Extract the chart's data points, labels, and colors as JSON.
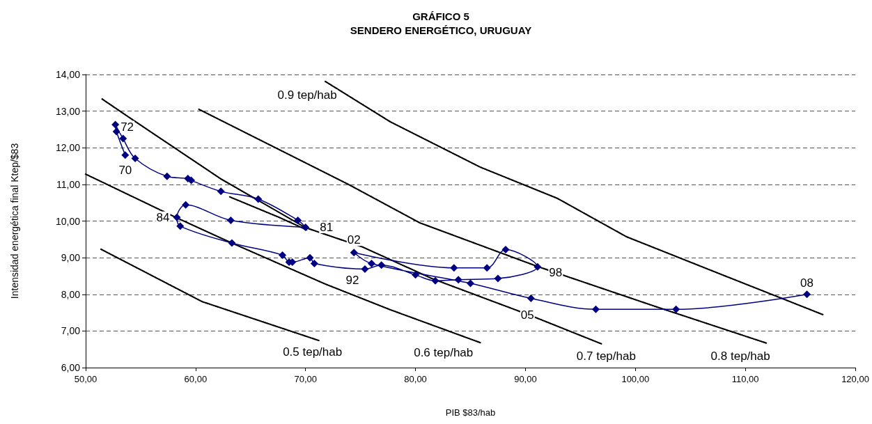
{
  "chart_data": {
    "type": "line",
    "title": "GRÁFICO 5\nSENDERO ENERGÉTICO, URUGUAY",
    "xlabel": "PIB $83/hab",
    "ylabel": "Intensidad energética final Ktep/$83",
    "xlim": [
      50,
      120
    ],
    "xticks": [
      {
        "value": 50,
        "label": "50,00"
      },
      {
        "value": 60,
        "label": "60,00"
      },
      {
        "value": 70,
        "label": "70,00"
      },
      {
        "value": 80,
        "label": "80,00"
      },
      {
        "value": 90,
        "label": "90,00"
      },
      {
        "value": 100,
        "label": "100,00"
      },
      {
        "value": 110,
        "label": "110,00"
      },
      {
        "value": 120,
        "label": "120,00"
      }
    ],
    "ylim": [
      6,
      14
    ],
    "yticks": [
      {
        "value": 6,
        "label": "6,00"
      },
      {
        "value": 7,
        "label": "7,00"
      },
      {
        "value": 8,
        "label": "8,00"
      },
      {
        "value": 9,
        "label": "9,00"
      },
      {
        "value": 10,
        "label": "10,00"
      },
      {
        "value": 11,
        "label": "11,00"
      },
      {
        "value": 12,
        "label": "12,00"
      },
      {
        "value": 13,
        "label": "13,00"
      },
      {
        "value": 14,
        "label": "14,00"
      }
    ],
    "grid": "y",
    "series": [
      {
        "color": "#000080",
        "marker": "diamond",
        "line_style": "solid",
        "x": [
          53.6,
          52.8,
          52.7,
          53.4,
          54.5,
          57.4,
          59.3,
          59.6,
          62.3,
          65.7,
          69.3,
          70.0,
          63.2,
          59.1,
          58.3,
          58.6,
          63.3,
          67.9,
          68.5,
          68.8,
          70.4,
          70.8,
          75.4,
          76.9,
          80.0,
          81.8,
          83.9,
          87.5,
          91.1,
          88.2,
          86.5,
          83.5,
          74.4,
          76.0,
          85.0,
          90.5,
          96.4,
          103.7,
          115.6
        ],
        "values": [
          11.8,
          12.44,
          12.63,
          12.25,
          11.71,
          11.22,
          11.16,
          11.11,
          10.81,
          10.6,
          10.02,
          9.83,
          10.02,
          10.44,
          10.1,
          9.86,
          9.4,
          9.07,
          8.88,
          8.88,
          9.0,
          8.84,
          8.69,
          8.8,
          8.53,
          8.37,
          8.4,
          8.43,
          8.75,
          9.22,
          8.72,
          8.72,
          9.14,
          8.84,
          8.3,
          7.89,
          7.59,
          7.59,
          8.0
        ]
      },
      {
        "color": "#000000",
        "marker": "none",
        "line_style": "dotted",
        "x": [
          51.4,
          60.6,
          71.2
        ],
        "values": [
          9.23,
          7.8,
          6.74
        ]
      },
      {
        "color": "#000000",
        "marker": "none",
        "line_style": "dotted",
        "x": [
          50.0,
          58.2,
          63.3,
          71.8,
          77.7,
          85.9
        ],
        "values": [
          11.28,
          10.1,
          9.4,
          8.28,
          7.58,
          6.68
        ]
      },
      {
        "color": "#000000",
        "marker": "none",
        "line_style": "dotted",
        "x": [
          51.5,
          54.1,
          62.3,
          70.0,
          75.2,
          81.5,
          90.4,
          96.9
        ],
        "values": [
          13.33,
          12.8,
          11.15,
          9.82,
          9.29,
          8.43,
          7.43,
          6.65
        ]
      },
      {
        "color": "#000000",
        "marker": "none",
        "line_style": "dotted",
        "x": [
          63.1,
          67.6,
          70.1
        ],
        "values": [
          10.66,
          10.1,
          9.76
        ]
      },
      {
        "color": "#000000",
        "marker": "none",
        "line_style": "dotted",
        "x": [
          60.3,
          67.6,
          73.9,
          80.4,
          91.1,
          101.8,
          111.9
        ],
        "values": [
          13.05,
          11.95,
          11.0,
          9.95,
          8.76,
          7.67,
          6.67
        ]
      },
      {
        "color": "#000000",
        "marker": "none",
        "line_style": "dotted",
        "x": [
          71.8,
          77.7,
          85.9,
          92.9,
          99.2,
          107.5,
          117.1
        ],
        "values": [
          13.81,
          12.71,
          11.47,
          10.62,
          9.57,
          8.58,
          7.44
        ]
      }
    ],
    "annotations": [
      {
        "text": "72",
        "x": 52.7,
        "y": 12.63
      },
      {
        "text": "70",
        "x": 53.6,
        "y": 11.8
      },
      {
        "text": "84",
        "x": 58.3,
        "y": 10.1
      },
      {
        "text": "81",
        "x": 70.0,
        "y": 9.83
      },
      {
        "text": "02",
        "x": 74.4,
        "y": 9.14
      },
      {
        "text": "92",
        "x": 75.4,
        "y": 8.69
      },
      {
        "text": "98",
        "x": 91.1,
        "y": 8.75
      },
      {
        "text": "05",
        "x": 90.5,
        "y": 7.89
      },
      {
        "text": "08",
        "x": 115.6,
        "y": 8.0
      },
      {
        "text": "0.9 tep/hab",
        "x": 71.8,
        "y": 13.81
      },
      {
        "text": "0.5 tep/hab",
        "x": 71.2,
        "y": 6.74
      },
      {
        "text": "0.6 tep/hab",
        "x": 85.9,
        "y": 6.68
      },
      {
        "text": "0.7 tep/hab",
        "x": 96.9,
        "y": 6.65
      },
      {
        "text": "0.8 tep/hab",
        "x": 111.9,
        "y": 6.67
      }
    ]
  }
}
